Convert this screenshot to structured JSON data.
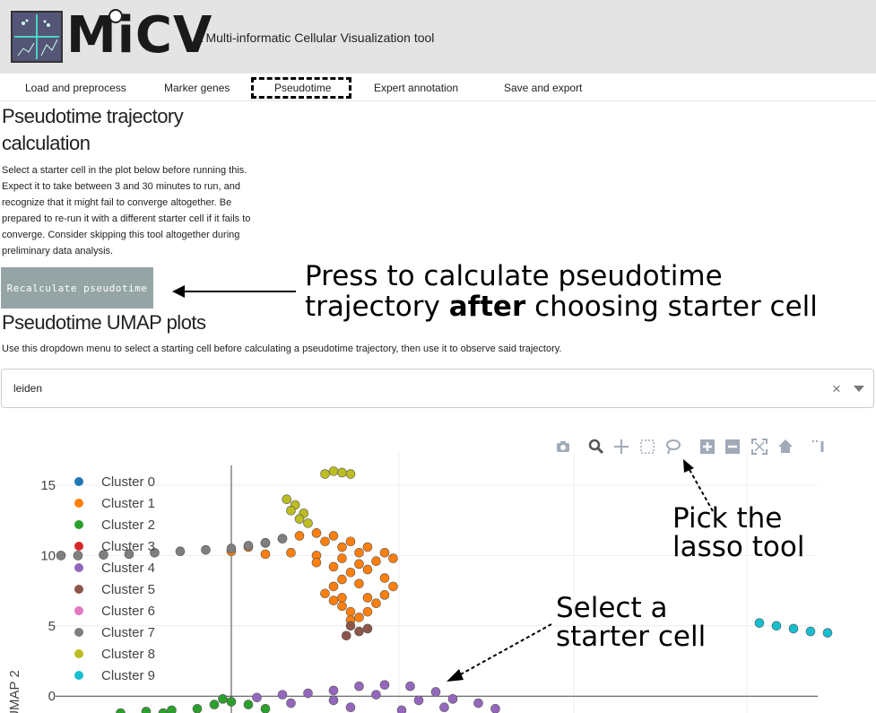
{
  "header": {
    "logo_text": "MiCV",
    "subtitle": "A Multi-informatic Cellular Visualization tool"
  },
  "tabs": [
    {
      "label": "Load and preprocess"
    },
    {
      "label": "Marker genes"
    },
    {
      "label": "Pseudotime",
      "active": true
    },
    {
      "label": "Expert annotation"
    },
    {
      "label": "Save and export"
    }
  ],
  "pseudotime": {
    "title_line1": "Pseudotime trajectory",
    "title_line2": "calculation",
    "description": [
      "Select a starter cell in the plot below before running this.",
      "Expect it to take between 3 and 30 minutes to run, and",
      "recognize that it might fail to converge altogether. Be",
      "prepared to re-run it with a different starter cell if it fails to",
      "converge. Consider skipping this tool altogether during",
      "preliminary data analysis."
    ],
    "button_label": "Recalculate pseudotime"
  },
  "annotations": {
    "press_line1": "Press to calculate pseudotime",
    "press_line2_a": "trajectory ",
    "press_line2_b": "after",
    "press_line2_c": " choosing starter cell",
    "lasso_line1": "Pick the",
    "lasso_line2": "lasso tool",
    "select_line1": "Select a",
    "select_line2": "starter cell"
  },
  "umap": {
    "title": "Pseudotime UMAP plots",
    "description": "Use this dropdown menu to select a starting cell before calculating a pseudotime trajectory, then use it to observe said trajectory.",
    "dropdown_value": "leiden",
    "clear_symbol": "×"
  },
  "modebar_icons": [
    "camera-icon",
    "zoom-icon",
    "pan-icon",
    "box-select-icon",
    "lasso-icon",
    "zoom-in-icon",
    "zoom-out-icon",
    "autoscale-icon",
    "reset-axes-icon",
    "spike-lines-icon"
  ],
  "chart_data": {
    "type": "scatter",
    "ylabel": "UMAP 2",
    "xlabel": "",
    "yticks": [
      0,
      5,
      10,
      15
    ],
    "ylim": [
      -1.2,
      17.3
    ],
    "legend_position": "top-left",
    "series": [
      {
        "name": "Cluster 0",
        "color": "#1f77b4",
        "points": []
      },
      {
        "name": "Cluster 1",
        "color": "#ff7f0e",
        "points": [
          [
            0,
            10.3
          ],
          [
            0.2,
            10.6
          ],
          [
            0.4,
            10.9
          ],
          [
            0.6,
            11.2
          ],
          [
            0.8,
            11.4
          ],
          [
            1.0,
            11.6
          ],
          [
            1.2,
            11.4
          ],
          [
            1.4,
            11.0
          ],
          [
            1.6,
            10.6
          ],
          [
            1.8,
            10.2
          ],
          [
            0.4,
            10.1
          ],
          [
            0.7,
            10.2
          ],
          [
            1.0,
            10.0
          ],
          [
            1.3,
            9.8
          ],
          [
            1.5,
            9.4
          ],
          [
            1.4,
            8.8
          ],
          [
            1.3,
            8.3
          ],
          [
            1.2,
            7.8
          ],
          [
            1.1,
            7.3
          ],
          [
            1.2,
            6.8
          ],
          [
            1.3,
            6.4
          ],
          [
            1.4,
            6.0
          ],
          [
            1.5,
            5.6
          ],
          [
            1.6,
            6.0
          ],
          [
            1.7,
            6.6
          ],
          [
            1.8,
            7.2
          ],
          [
            1.9,
            7.8
          ],
          [
            1.8,
            8.4
          ],
          [
            1.6,
            9.0
          ],
          [
            1.7,
            9.6
          ],
          [
            1.9,
            9.8
          ],
          [
            1.1,
            11.0
          ],
          [
            1.3,
            10.6
          ],
          [
            1.5,
            10.2
          ],
          [
            1.2,
            9.2
          ],
          [
            1.0,
            9.5
          ],
          [
            1.5,
            8.0
          ],
          [
            1.6,
            7.0
          ],
          [
            1.3,
            7.0
          ],
          [
            1.4,
            5.4
          ]
        ]
      },
      {
        "name": "Cluster 2",
        "color": "#2ca02c",
        "points": [
          [
            -1.3,
            -1.2
          ],
          [
            -1.0,
            -1.1
          ],
          [
            -0.7,
            -1.0
          ],
          [
            -0.4,
            -0.9
          ],
          [
            -0.2,
            -0.6
          ],
          [
            0.0,
            -0.4
          ],
          [
            0.2,
            -0.6
          ],
          [
            0.4,
            -0.9
          ],
          [
            -0.8,
            -1.2
          ],
          [
            -0.1,
            -0.2
          ]
        ]
      },
      {
        "name": "Cluster 3",
        "color": "#d62728",
        "points": []
      },
      {
        "name": "Cluster 4",
        "color": "#9467bd",
        "points": [
          [
            0.3,
            -0.1
          ],
          [
            0.6,
            0.1
          ],
          [
            0.9,
            0.2
          ],
          [
            1.2,
            0.4
          ],
          [
            1.5,
            0.7
          ],
          [
            1.8,
            0.8
          ],
          [
            2.1,
            0.7
          ],
          [
            2.4,
            0.3
          ],
          [
            2.6,
            -0.2
          ],
          [
            2.9,
            -0.5
          ],
          [
            3.1,
            -0.9
          ],
          [
            2.2,
            -0.3
          ],
          [
            1.7,
            0.1
          ],
          [
            1.2,
            -0.3
          ],
          [
            0.7,
            -0.5
          ],
          [
            1.4,
            -0.8
          ],
          [
            2.0,
            -1.0
          ],
          [
            2.5,
            -0.8
          ]
        ]
      },
      {
        "name": "Cluster 5",
        "color": "#8c564b",
        "points": [
          [
            1.4,
            5.0
          ],
          [
            1.5,
            4.6
          ],
          [
            1.35,
            4.3
          ],
          [
            1.6,
            4.8
          ]
        ]
      },
      {
        "name": "Cluster 6",
        "color": "#e377c2",
        "points": []
      },
      {
        "name": "Cluster 7",
        "color": "#7f7f7f",
        "points": [
          [
            -2.0,
            10.0
          ],
          [
            -1.8,
            10.0
          ],
          [
            -1.5,
            10.05
          ],
          [
            -1.2,
            10.1
          ],
          [
            -0.9,
            10.2
          ],
          [
            -0.6,
            10.3
          ],
          [
            -0.3,
            10.4
          ],
          [
            0.0,
            10.5
          ],
          [
            0.2,
            10.7
          ],
          [
            0.4,
            10.9
          ],
          [
            0.6,
            11.2
          ]
        ]
      },
      {
        "name": "Cluster 8",
        "color": "#bcbd22",
        "points": [
          [
            0.65,
            14.0
          ],
          [
            0.75,
            13.6
          ],
          [
            0.7,
            13.2
          ],
          [
            0.85,
            13.0
          ],
          [
            0.8,
            12.6
          ],
          [
            0.9,
            12.3
          ],
          [
            1.1,
            15.8
          ],
          [
            1.3,
            15.9
          ],
          [
            1.2,
            16.0
          ],
          [
            1.4,
            15.8
          ]
        ]
      },
      {
        "name": "Cluster 9",
        "color": "#17becf",
        "points": [
          [
            6.2,
            5.2
          ],
          [
            6.4,
            5.0
          ],
          [
            6.6,
            4.8
          ],
          [
            6.8,
            4.6
          ],
          [
            7.0,
            4.5
          ]
        ]
      }
    ]
  }
}
